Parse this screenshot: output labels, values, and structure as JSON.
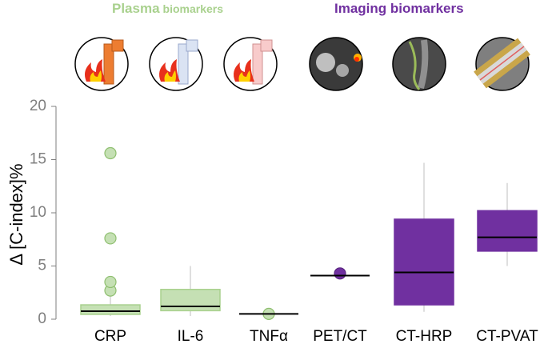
{
  "chart_data": {
    "type": "box",
    "group_labels": [
      {
        "main": "Plasma",
        "sub": "biomarkers",
        "color": "#a9d18e"
      },
      {
        "main": "Imaging biomarkers",
        "color": "#7030a0"
      }
    ],
    "y_label": "Δ [C-index]%",
    "categories": [
      "CRP",
      "IL-6",
      "TNFα",
      "PET/CT",
      "CT-HRP",
      "CT-PVAT"
    ],
    "colors": [
      "#c5e0b4",
      "#c5e0b4",
      "#c5e0b4",
      "#7030a0",
      "#7030a0",
      "#7030a0"
    ],
    "boxes": [
      {
        "whislo": 0.3,
        "q1": 0.45,
        "med": 0.75,
        "q3": 1.35,
        "whishi": 2.2,
        "fliers": [
          2.7,
          3.5,
          7.6,
          15.6
        ]
      },
      {
        "whislo": 0.3,
        "q1": 0.8,
        "med": 1.2,
        "q3": 2.8,
        "whishi": 5.0,
        "fliers": []
      },
      {
        "whislo": 0.5,
        "q1": 0.5,
        "med": 0.5,
        "q3": 0.5,
        "whishi": 0.5,
        "fliers": [
          0.5
        ]
      },
      {
        "whislo": 4.1,
        "q1": 4.1,
        "med": 4.1,
        "q3": 4.1,
        "whishi": 4.1,
        "fliers": [
          4.3
        ]
      },
      {
        "whislo": 0.7,
        "q1": 1.35,
        "med": 4.4,
        "q3": 9.4,
        "whishi": 14.7,
        "fliers": []
      },
      {
        "whislo": 5.0,
        "q1": 6.4,
        "med": 7.7,
        "q3": 10.2,
        "whishi": 12.8,
        "fliers": []
      }
    ],
    "ylim": [
      0,
      20
    ],
    "yticks": [
      0,
      5,
      10,
      15,
      20
    ]
  }
}
